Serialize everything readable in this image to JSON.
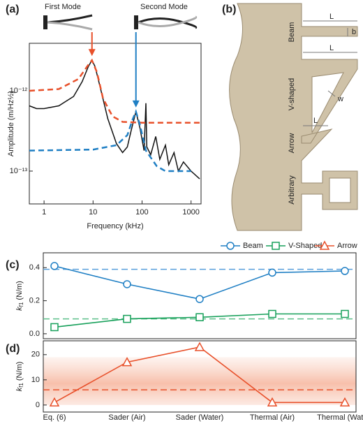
{
  "chart_data": [
    {
      "type": "line",
      "panel": "(a)",
      "mode_labels": [
        "First Mode",
        "Second Mode"
      ],
      "xlabel": "Frequency (kHz)",
      "ylabel": "Amplitude (m/Hz½)",
      "xscale": "log",
      "yscale": "log",
      "xlim": [
        0.5,
        1600
      ],
      "ylim": [
        3.9e-14,
        3.9e-12
      ],
      "xticks": [
        1,
        10,
        100,
        1000
      ],
      "yticks": [
        {
          "value": 1e-13,
          "label": "10⁻¹³"
        },
        {
          "value": 1e-12,
          "label": "10⁻¹²"
        }
      ],
      "series": [
        {
          "color": "#111111",
          "dashed": false,
          "x": [
            0.5,
            0.7,
            1,
            2,
            4,
            6,
            8,
            9.5,
            11,
            14,
            20,
            30,
            40,
            50,
            60,
            75,
            90,
            110,
            120,
            125,
            150,
            190,
            230,
            300,
            350,
            450,
            550,
            700,
            1000,
            1500
          ],
          "values": [
            6.5e-13,
            6e-13,
            6e-13,
            6.5e-13,
            8.5e-13,
            1.3e-12,
            2e-12,
            2.4e-12,
            2e-12,
            1.1e-12,
            4.5e-13,
            2.2e-13,
            1.7e-13,
            2e-13,
            3.2e-13,
            5.5e-13,
            3.5e-13,
            1.8e-13,
            7e-13,
            2e-13,
            1.6e-13,
            2.7e-13,
            1.4e-13,
            2.1e-13,
            1.2e-13,
            1.7e-13,
            1e-13,
            1.3e-13,
            1e-13,
            8e-14
          ]
        },
        {
          "color": "#e8502a",
          "dashed": true,
          "x": [
            0.5,
            2,
            5,
            8,
            9.5,
            12,
            16,
            25,
            40,
            100,
            1500
          ],
          "values": [
            1e-12,
            1.05e-12,
            1.4e-12,
            2.1e-12,
            2.4e-12,
            1.7e-12,
            8e-13,
            4.8e-13,
            4.1e-13,
            4e-13,
            4e-13
          ]
        },
        {
          "color": "#1f7fc4",
          "dashed": true,
          "x": [
            0.5,
            10,
            30,
            50,
            65,
            75,
            90,
            120,
            200,
            300,
            1000
          ],
          "values": [
            1.8e-13,
            1.85e-13,
            2.1e-13,
            2.8e-13,
            4.5e-13,
            5.5e-13,
            3.8e-13,
            1.8e-13,
            1.15e-13,
            1e-13,
            1e-13
          ]
        }
      ]
    },
    {
      "type": "line",
      "panel": "(c)",
      "ylabel": {
        "symbol": "k",
        "subscript": "f1",
        "unit": "(N/m)"
      },
      "ylim": [
        -0.03,
        0.49
      ],
      "yticks": [
        {
          "value": 0,
          "label": "0.0"
        },
        {
          "value": 0.2,
          "label": "0.2"
        },
        {
          "value": 0.4,
          "label": "0.4"
        }
      ],
      "series": [
        {
          "name": "Beam",
          "color": "#1f7fc4",
          "marker": "circle",
          "values": [
            0.41,
            0.3,
            0.21,
            0.37,
            0.38
          ]
        },
        {
          "name": "V-Shaped",
          "color": "#17a05a",
          "marker": "square",
          "values": [
            0.04,
            0.09,
            0.1,
            0.12,
            0.12
          ]
        }
      ],
      "reference_lines": [
        {
          "value": 0.39,
          "color": "#5aa0dc"
        },
        {
          "value": 0.09,
          "color": "#5cc08a"
        }
      ]
    },
    {
      "type": "line",
      "panel": "(d)",
      "ylabel": {
        "symbol": "k",
        "subscript": "f1",
        "unit": "(N/m)"
      },
      "categories": [
        "Eq. (6)",
        "Sader (Air)",
        "Sader (Water)",
        "Thermal (Air)",
        "Thermal (Water)"
      ],
      "ylim": [
        -2.8,
        25.5
      ],
      "yticks": [
        0,
        10,
        20
      ],
      "series": [
        {
          "name": "Arrow",
          "color": "#e8502a",
          "marker": "triangle",
          "values": [
            1,
            17,
            23,
            1,
            1
          ]
        }
      ],
      "reference_lines": [
        {
          "value": 6,
          "color": "#e8502a"
        }
      ],
      "shaded_band": [
        0,
        19
      ]
    }
  ],
  "diagram": {
    "panel": "(b)",
    "labels": [
      "Beam",
      "V-shaped",
      "Arrow",
      "Arbitrary"
    ],
    "dims": [
      "L",
      "b",
      "L",
      "w",
      "L"
    ]
  }
}
